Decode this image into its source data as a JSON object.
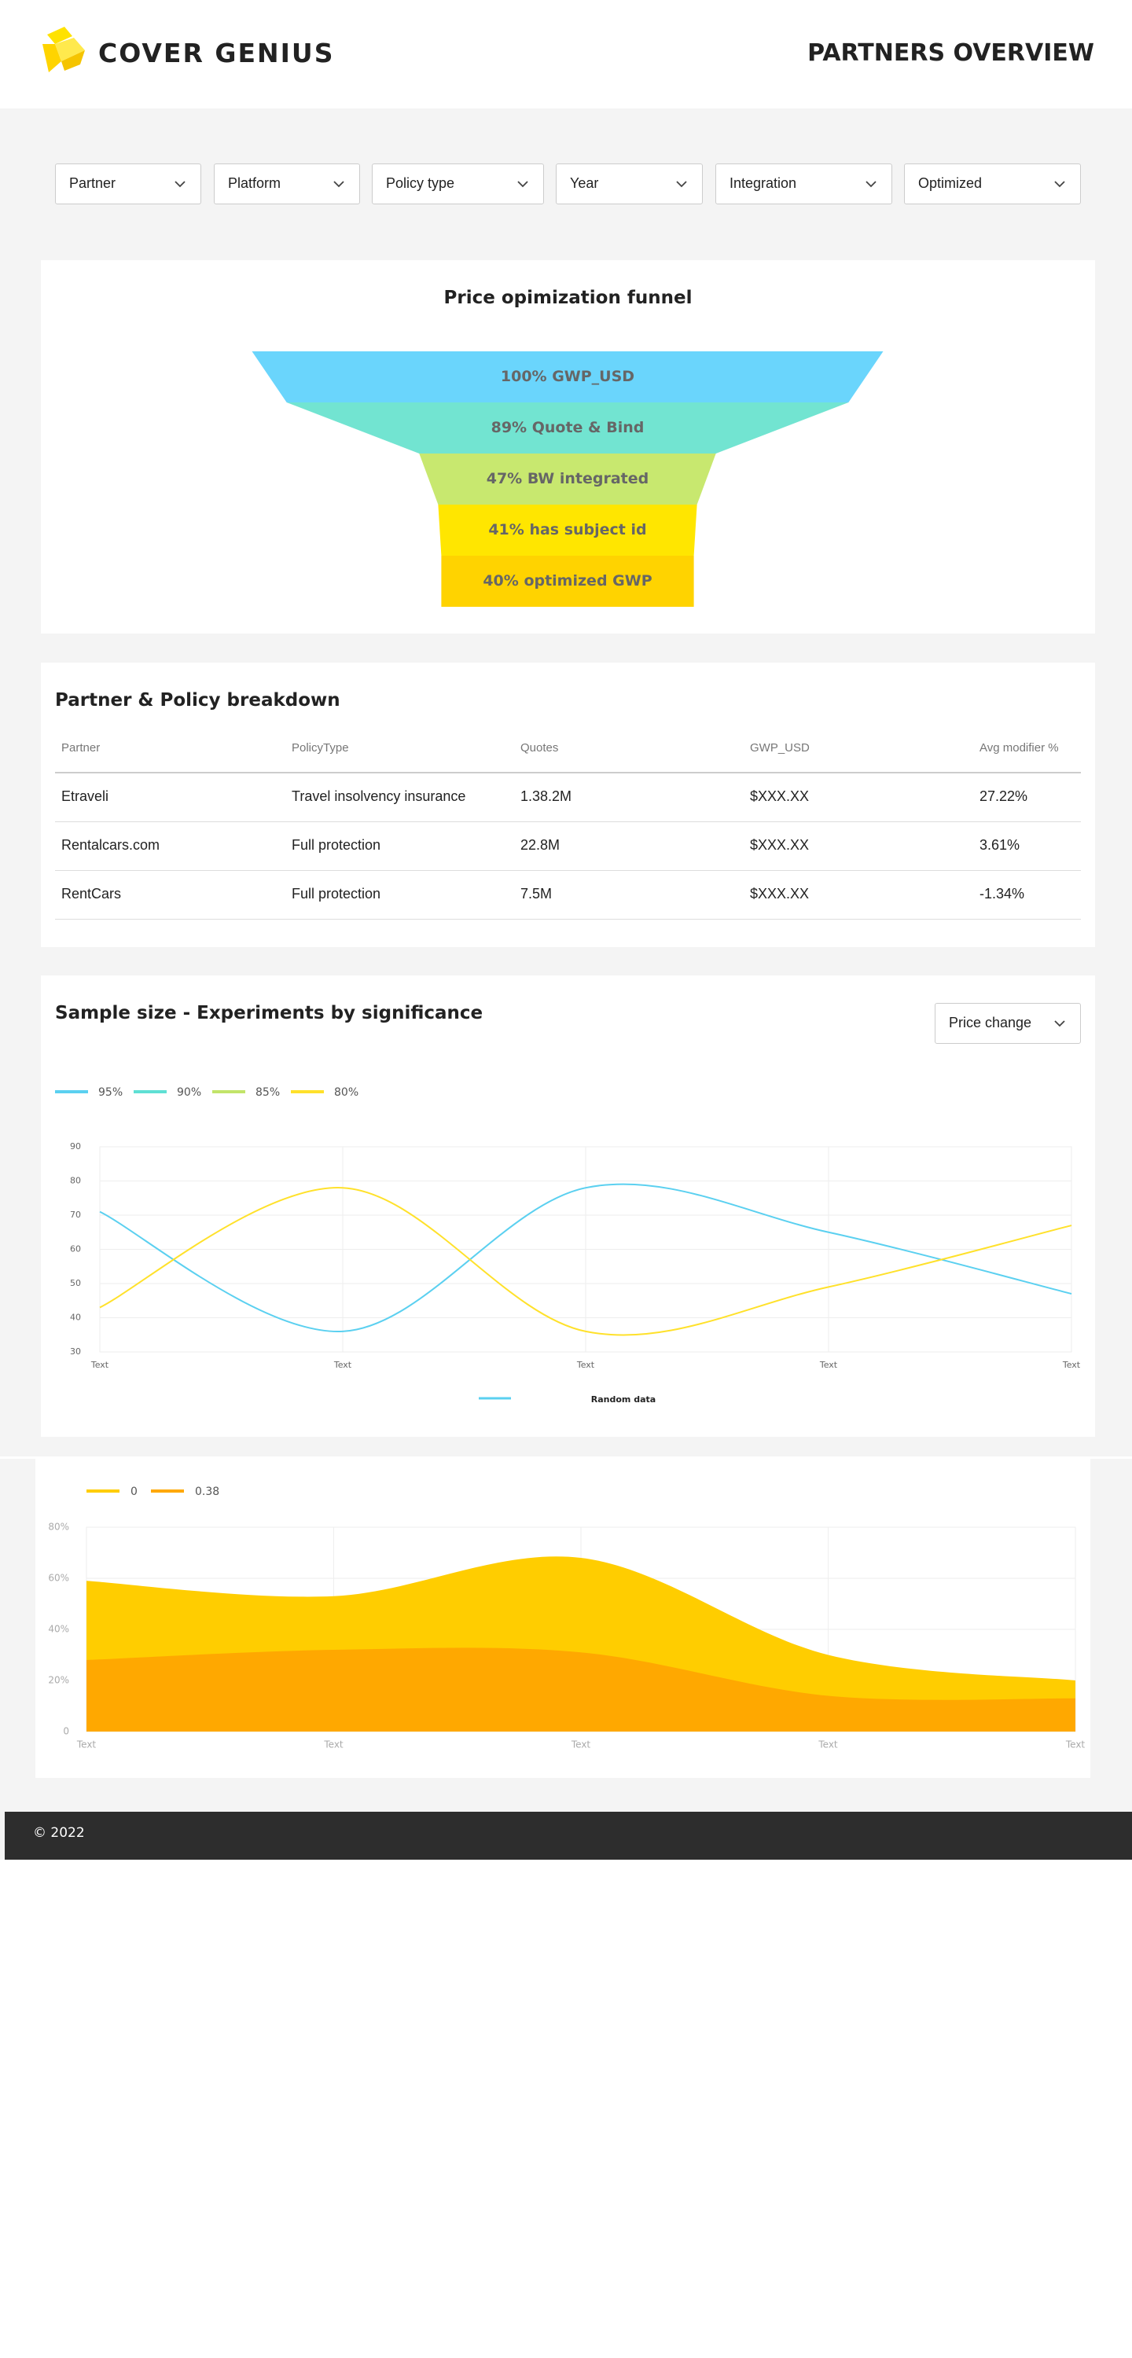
{
  "header": {
    "brand": "COVER GENIUS",
    "title": "PARTNERS OVERVIEW"
  },
  "filters": [
    "Partner",
    "Platform",
    "Policy type",
    "Year",
    "Integration",
    "Optimized"
  ],
  "table": {
    "title": "Partner & Policy breakdown",
    "columns": [
      "Partner",
      "PolicyType",
      "Quotes",
      "GWP_USD",
      "Avg modifier %"
    ],
    "rows": [
      [
        "Etraveli",
        "Travel insolvency insurance",
        "1.38.2M",
        "$XXX.XX",
        "27.22%"
      ],
      [
        "Rentalcars.com",
        "Full protection",
        "22.8M",
        "$XXX.XX",
        "3.61%"
      ],
      [
        "RentCars",
        "Full protection",
        "7.5M",
        "$XXX.XX",
        "-1.34%"
      ]
    ]
  },
  "chart_data": [
    {
      "type": "funnel",
      "title": "Price opimization funnel",
      "categories": [
        "GWP_USD",
        "Quote & Bind",
        "BW integrated",
        "has subject id",
        "optimized GWP"
      ],
      "values": [
        100,
        89,
        47,
        41,
        40
      ],
      "value_labels": [
        "100%",
        "89%",
        "47%",
        "41%",
        "40%"
      ],
      "colors": [
        "#6ad5fc",
        "#72e4d1",
        "#c8e86f",
        "#ffe600",
        "#ffd300"
      ]
    },
    {
      "type": "line",
      "title": "Sample size - Experiments by significance",
      "dropdown": "Price change",
      "categories": [
        "Text",
        "Text",
        "Text",
        "Text",
        "Text"
      ],
      "series": [
        {
          "name": "95%",
          "color": "#5bd0f0",
          "values": [
            71,
            36,
            78,
            65,
            47
          ]
        },
        {
          "name": "90%",
          "color": "#5fe0d4",
          "values": [
            null,
            null,
            null,
            null,
            null
          ]
        },
        {
          "name": "85%",
          "color": "#c2e46a",
          "values": [
            null,
            null,
            null,
            null,
            null
          ]
        },
        {
          "name": "80%",
          "color": "#ffe12b",
          "values": [
            43,
            78,
            36,
            49,
            67
          ]
        }
      ],
      "bottom_legend": {
        "name": "Random data",
        "color": "#5bd0f0"
      },
      "ylim": [
        30,
        90
      ],
      "yticks": [
        30,
        40,
        50,
        60,
        70,
        80,
        90
      ],
      "grid": true
    },
    {
      "type": "area",
      "categories": [
        "Text",
        "Text",
        "Text",
        "Text",
        "Text"
      ],
      "series": [
        {
          "name": "0",
          "color": "#ffcd00",
          "values": [
            59,
            53,
            68,
            30,
            20
          ]
        },
        {
          "name": "0.38",
          "color": "#ffa800",
          "values": [
            28,
            32,
            31,
            14,
            13
          ]
        }
      ],
      "ylim": [
        0,
        80
      ],
      "yticks": [
        0,
        {
          "value": 20,
          "label": "20%"
        },
        {
          "value": 40,
          "label": "40%"
        },
        {
          "value": 60,
          "label": "60%"
        },
        {
          "value": 80,
          "label": "80%"
        }
      ],
      "grid": true
    }
  ],
  "footer": "© 2022"
}
